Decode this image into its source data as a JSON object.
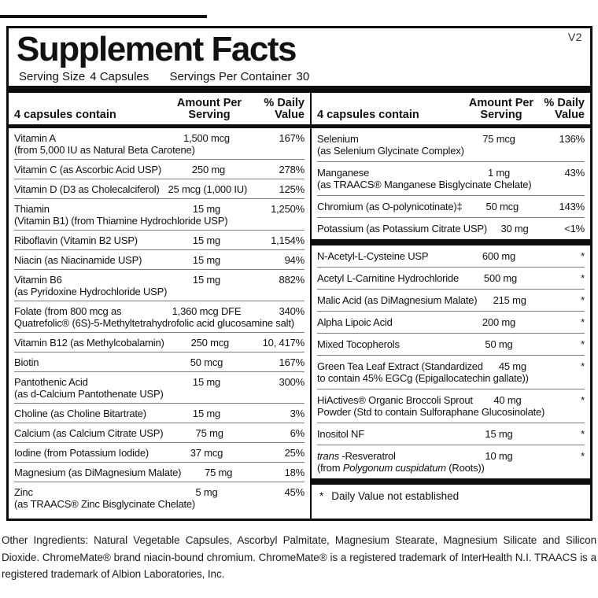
{
  "version_tag": "V2",
  "header": {
    "title": "Supplement Facts",
    "serving_size_label": "Serving Size",
    "serving_size_value": "4 Capsules",
    "servings_per_container_label": "Servings Per Container",
    "servings_per_container_value": "30"
  },
  "columns": [
    {
      "contain_label": "4 capsules contain",
      "amount_header": "Amount Per Serving",
      "dv_header": "% Daily Value",
      "sections": [
        {
          "rows": [
            {
              "name": "Vitamin A",
              "amount": "1,500 mcg",
              "dv": "167%",
              "sub": "(from 5,000 IU as Natural Beta Carotene)"
            },
            {
              "name": "Vitamin C (as Ascorbic Acid USP)",
              "amount": "250 mg",
              "dv": "278%"
            },
            {
              "name": "Vitamin D (D3 as Cholecalciferol)",
              "amount": "25 mcg (1,000 IU)",
              "dv": "125%"
            },
            {
              "name": "Thiamin",
              "amount": "15 mg",
              "dv": "1,250%",
              "sub": "(Vitamin B1) (from Thiamine Hydrochloride USP)"
            },
            {
              "name": "Riboflavin (Vitamin B2 USP)",
              "amount": "15 mg",
              "dv": "1,154%"
            },
            {
              "name": "Niacin (as Niacinamide USP)",
              "amount": "15 mg",
              "dv": "94%"
            },
            {
              "name": "Vitamin B6",
              "amount": "15 mg",
              "dv": "882%",
              "sub": "(as Pyridoxine Hydrochloride USP)"
            },
            {
              "name": "Folate (from 800 mcg as",
              "amount": "1,360 mcg DFE",
              "dv": "340%",
              "sub": "Quatrefolic® (6S)-5-Methyltetrahydrofolic acid glucosamine salt)"
            },
            {
              "name": "Vitamin B12 (as Methylcobalamin)",
              "amount": "250 mcg",
              "dv": "10, 417%"
            },
            {
              "name": "Biotin",
              "amount": "50 mcg",
              "dv": "167%"
            },
            {
              "name": "Pantothenic Acid",
              "amount": "15 mg",
              "dv": "300%",
              "sub": "(as d-Calcium Pantothenate USP)"
            },
            {
              "name": "Choline (as Choline Bitartrate)",
              "amount": "15 mg",
              "dv": "3%"
            },
            {
              "name": "Calcium (as Calcium Citrate USP)",
              "amount": "75 mg",
              "dv": "6%"
            },
            {
              "name": "Iodine (from Potassium Iodide)",
              "amount": "37 mcg",
              "dv": "25%"
            },
            {
              "name": "Magnesium (as DiMagnesium Malate)",
              "amount": "75 mg",
              "dv": "18%"
            },
            {
              "name": "Zinc",
              "amount": "5 mg",
              "dv": "45%",
              "sub": "(as TRAACS® Zinc Bisglycinate Chelate)"
            }
          ]
        }
      ]
    },
    {
      "contain_label": "4 capsules contain",
      "amount_header": "Amount Per Serving",
      "dv_header": "% Daily Value",
      "sections": [
        {
          "rows": [
            {
              "name": "Selenium",
              "amount": "75 mcg",
              "dv": "136%",
              "sub": "(as Selenium Glycinate Complex)"
            },
            {
              "name": "Manganese",
              "amount": "1 mg",
              "dv": "43%",
              "sub": "(as TRAACS® Manganese Bisglycinate Chelate)"
            },
            {
              "name": "Chromium (as O-polynicotinate)‡",
              "amount": "50 mcg",
              "dv": "143%"
            },
            {
              "name": "Potassium (as Potassium Citrate USP)",
              "amount": "30 mg",
              "dv": "<1%"
            }
          ]
        },
        {
          "rows": [
            {
              "name": "N-Acetyl-L-Cysteine USP",
              "amount": "600 mg",
              "dv": "*"
            },
            {
              "name": "Acetyl L-Carnitine Hydrochloride",
              "amount": "500 mg",
              "dv": "*"
            },
            {
              "name": "Malic Acid (as DiMagnesium Malate)",
              "amount": "215 mg",
              "dv": "*"
            },
            {
              "name": "Alpha Lipoic Acid",
              "amount": "200 mg",
              "dv": "*"
            },
            {
              "name": "Mixed Tocopherols",
              "amount": "50 mg",
              "dv": "*"
            },
            {
              "name": "Green Tea Leaf Extract (Standardized",
              "amount": "45 mg",
              "dv": "*",
              "sub": "to contain 45% EGCg (Epigallocatechin gallate))"
            },
            {
              "name": "HiActives® Organic Broccoli Sprout",
              "amount": "40 mg",
              "dv": "*",
              "sub": "Powder (Std to contain Sulforaphane Glucosinolate)"
            },
            {
              "name": "Inositol NF",
              "amount": "15 mg",
              "dv": "*"
            },
            {
              "name_parts": [
                {
                  "text": "trans ",
                  "italic": true
                },
                {
                  "text": "-Resveratrol",
                  "italic": false
                }
              ],
              "amount": "10 mg",
              "dv": "*",
              "sub_parts": [
                {
                  "text": "(from ",
                  "italic": false
                },
                {
                  "text": "Polygonum cuspidatum",
                  "italic": true
                },
                {
                  "text": " (Roots))",
                  "italic": false
                }
              ]
            }
          ]
        }
      ],
      "footnote": {
        "symbol": "*",
        "text": "Daily Value not established"
      }
    }
  ],
  "other_ingredients": "Other Ingredients: Natural Vegetable Capsules, Ascorbyl Palmitate, Magnesium Stearate, Magnesium Silicate and Silicon Dioxide. ChromeMate® brand niacin-bound chromium. ChromeMate® is a registered trademark of InterHealth N.I. TRAACS is a registered trademark of Albion Laboratories, Inc.",
  "colors": {
    "ink": "#0d0d0d",
    "separator": "#7d7d7d",
    "background": "#ffffff"
  }
}
